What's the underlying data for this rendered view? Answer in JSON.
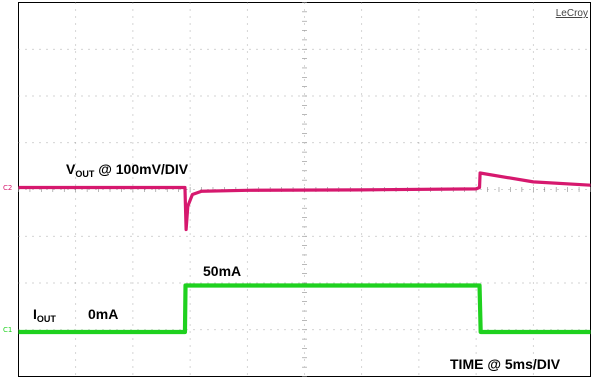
{
  "brand": "LeCroy",
  "colors": {
    "voltage_trace": "#d6186e",
    "current_trace": "#1fd11f",
    "grid": "#8a8a8a",
    "frame": "#000000",
    "background": "#ffffff"
  },
  "chart_data": {
    "type": "line",
    "grid": {
      "divisions_x": 10,
      "divisions_y": 8,
      "style": "dotted"
    },
    "x": {
      "units": "ms",
      "per_div": 5,
      "range": [
        0,
        50
      ]
    },
    "series": [
      {
        "name": "VOUT",
        "units": "mV",
        "per_div": 100,
        "ground_marker": "C2",
        "points": [
          [
            0,
            0
          ],
          [
            14.55,
            0
          ],
          [
            14.65,
            -90
          ],
          [
            14.8,
            -40
          ],
          [
            15.2,
            -15
          ],
          [
            16,
            -8
          ],
          [
            20,
            -6
          ],
          [
            30,
            -5
          ],
          [
            40,
            -3
          ],
          [
            40.3,
            0
          ],
          [
            40.35,
            31
          ],
          [
            45,
            12
          ],
          [
            50,
            5
          ]
        ],
        "label": {
          "base": "V",
          "sub": "OUT",
          "text": " @ 100mV/DIV"
        }
      },
      {
        "name": "IOUT",
        "ground_marker": "C1",
        "points": [
          [
            0,
            0
          ],
          [
            14.55,
            0
          ],
          [
            14.6,
            50
          ],
          [
            40.3,
            50
          ],
          [
            40.4,
            0
          ],
          [
            50,
            0
          ]
        ],
        "label": {
          "base": "I",
          "sub": "OUT",
          "text": ""
        },
        "level_labels": {
          "low": "0mA",
          "high": "50mA"
        }
      }
    ],
    "time_label": "TIME @ 5ms/DIV"
  }
}
